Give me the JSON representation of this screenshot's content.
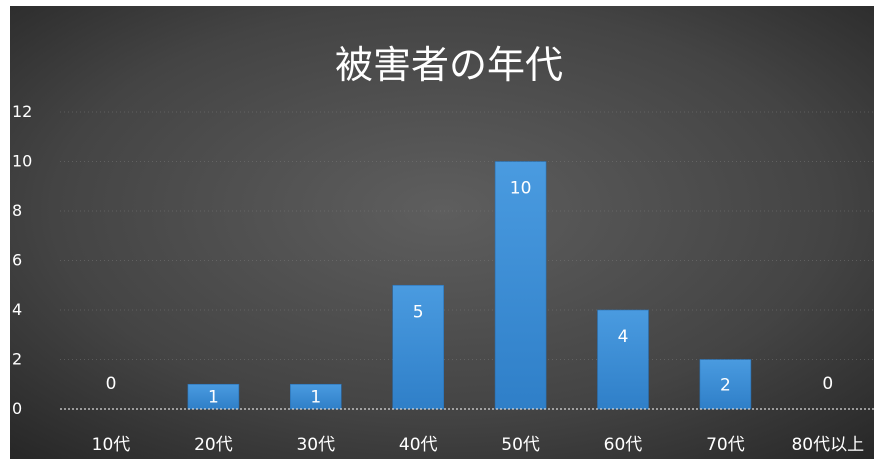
{
  "chart_data": {
    "type": "bar",
    "title": "被害者の年代",
    "xlabel": "",
    "ylabel": "",
    "categories": [
      "10代",
      "20代",
      "30代",
      "40代",
      "50代",
      "60代",
      "70代",
      "80代以上"
    ],
    "values": [
      0,
      1,
      1,
      5,
      10,
      4,
      2,
      0
    ],
    "y_ticks": [
      0,
      2,
      4,
      6,
      8,
      10,
      12
    ],
    "ylim": [
      0,
      12
    ],
    "grid": true,
    "legend": "none",
    "data_labels": true,
    "colors": {
      "bar": "#3f8fd6",
      "bar_edge": "#2a6fb0",
      "text": "#ffffff",
      "background_center": "#5b5b5b",
      "background_edge": "#2b2b2b"
    }
  }
}
